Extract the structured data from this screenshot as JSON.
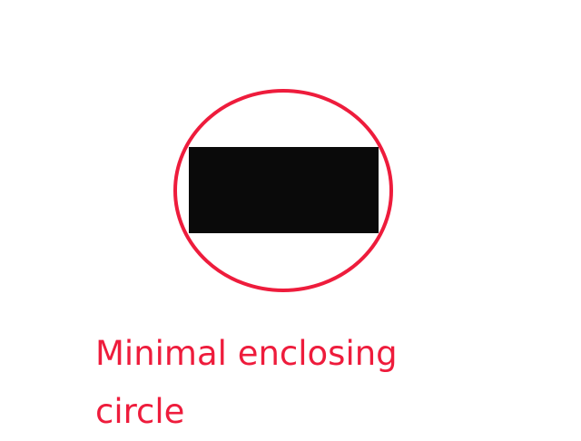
{
  "colors": {
    "background": "#ffffff",
    "circle": "#ee1c3c",
    "rectangle": "#0a0a0a",
    "caption": "#ee1c3c"
  },
  "caption": {
    "line1": "Minimal enclosing",
    "line2": "circle"
  }
}
